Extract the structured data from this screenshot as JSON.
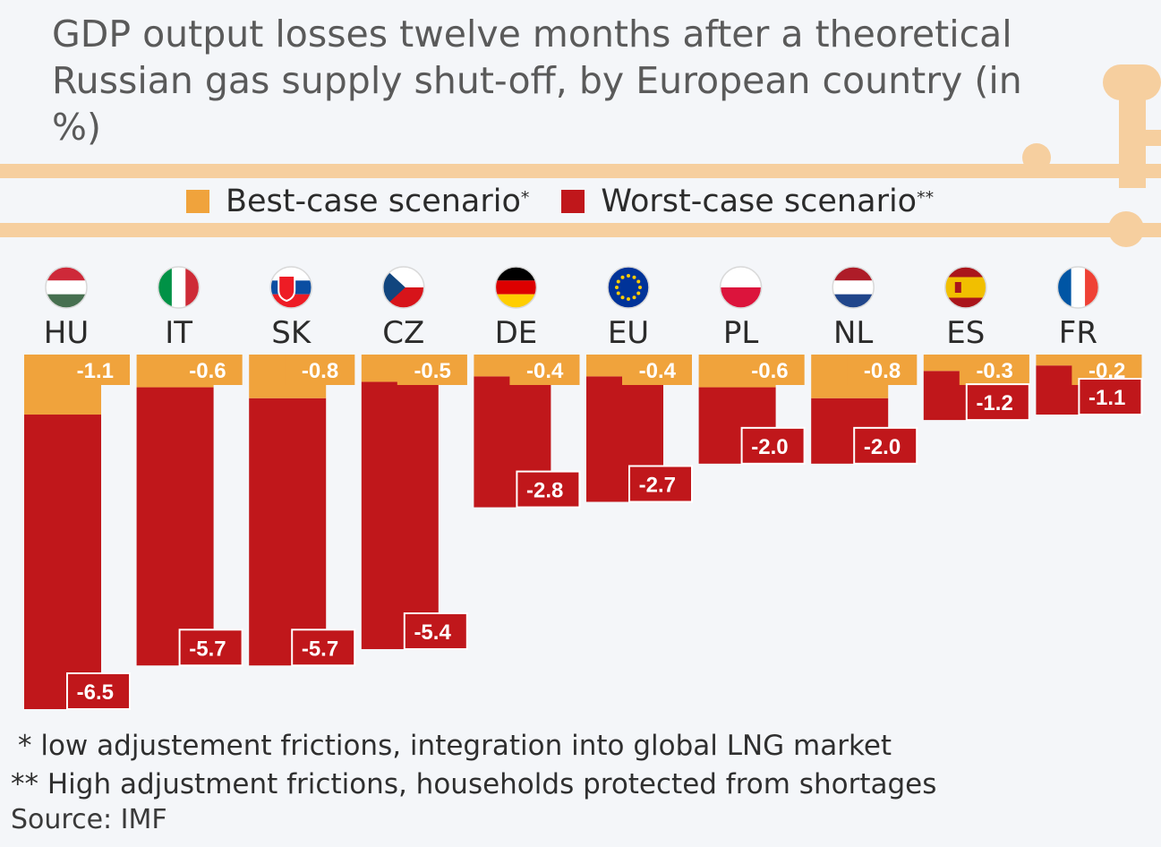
{
  "title_lines": [
    "GDP output losses twelve months after a theoretical",
    "Russian gas supply shut-off, by European country (in %)"
  ],
  "legend": {
    "best": {
      "label": "Best-case scenario",
      "mark": "*"
    },
    "worst": {
      "label": "Worst-case scenario",
      "mark": "**"
    }
  },
  "colors": {
    "best": "#f0a33c",
    "worst": "#c0171b",
    "deco": "#f6cf9f"
  },
  "footnotes": [
    "*  low adjustement frictions, integration into global LNG market",
    "** High adjustment frictions, households protected from shortages"
  ],
  "source": "Source: IMF",
  "chart_data": {
    "type": "bar",
    "categories": [
      "HU",
      "IT",
      "SK",
      "CZ",
      "DE",
      "EU",
      "PL",
      "NL",
      "ES",
      "FR"
    ],
    "flags": [
      "hungary-flag",
      "italy-flag",
      "slovakia-flag",
      "czechia-flag",
      "germany-flag",
      "eu-flag",
      "poland-flag",
      "netherlands-flag",
      "spain-flag",
      "france-flag"
    ],
    "series": [
      {
        "name": "Best-case scenario*",
        "values": [
          -1.1,
          -0.6,
          -0.8,
          -0.5,
          -0.4,
          -0.4,
          -0.6,
          -0.8,
          -0.3,
          -0.2
        ],
        "labels": [
          "-1.1",
          "-0.6",
          "-0.8",
          "-0.5",
          "-0.4",
          "-0.4",
          "-0.6",
          "-0.8",
          "-0.3",
          "-0.2"
        ]
      },
      {
        "name": "Worst-case scenario**",
        "values": [
          -6.5,
          -5.7,
          -5.7,
          -5.4,
          -2.8,
          -2.7,
          -2.0,
          -2.0,
          -1.2,
          -1.1
        ],
        "labels": [
          "-6.5",
          "-5.7",
          "-5.7",
          "-5.4",
          "-2.8",
          "-2.7",
          "-2.0",
          "-2.0",
          "-1.2",
          "-1.1"
        ]
      }
    ],
    "ylim": [
      -6.5,
      0
    ],
    "legend": "top"
  }
}
